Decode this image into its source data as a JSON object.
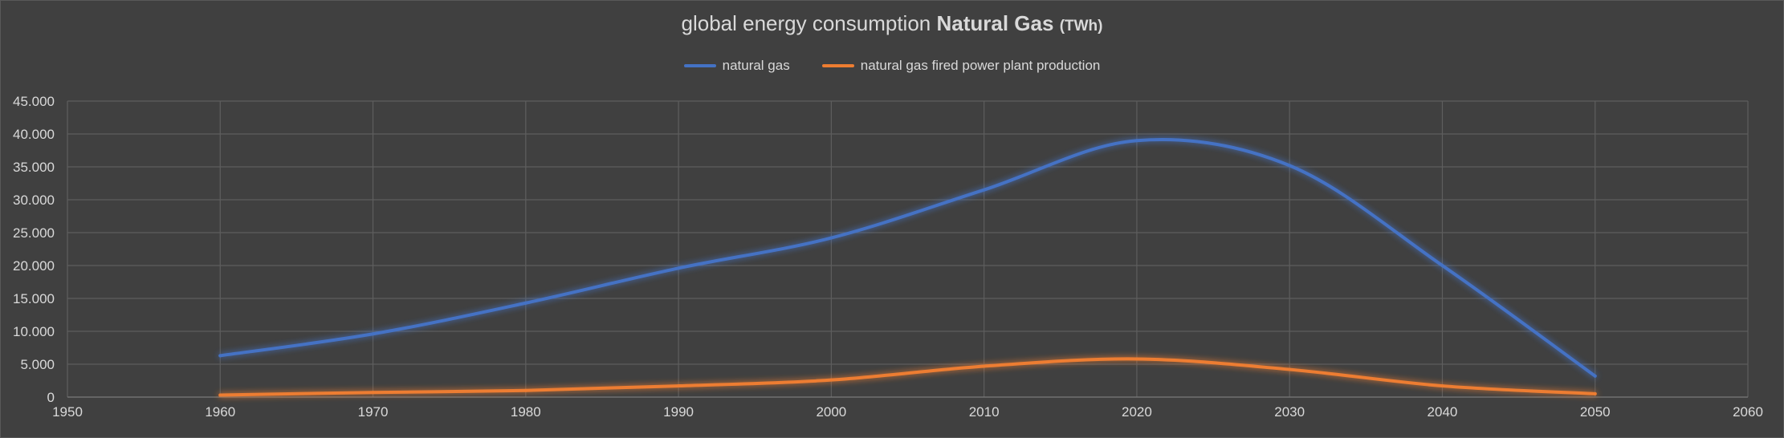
{
  "chart_data": {
    "type": "line",
    "title": "global energy consumption",
    "title_bold": "Natural Gas",
    "title_unit": "(TWh)",
    "xlabel": "",
    "ylabel": "",
    "xlim": [
      1950,
      2060
    ],
    "ylim": [
      0,
      45000
    ],
    "x_ticks": [
      "1950",
      "1960",
      "1970",
      "1980",
      "1990",
      "2000",
      "2010",
      "2020",
      "2030",
      "2040",
      "2050",
      "2060"
    ],
    "y_ticks": [
      "0",
      "5.000",
      "10.000",
      "15.000",
      "20.000",
      "25.000",
      "30.000",
      "35.000",
      "40.000",
      "45.000"
    ],
    "grid": true,
    "legend_position": "top-center",
    "series": [
      {
        "name": "natural gas",
        "color": "#4472c4",
        "x": [
          1960,
          1970,
          1980,
          1990,
          2000,
          2010,
          2020,
          2030,
          2040,
          2050
        ],
        "y": [
          6300,
          9600,
          14300,
          19600,
          24200,
          31500,
          39000,
          35200,
          20000,
          3200
        ]
      },
      {
        "name": "natural gas fired power plant production",
        "color": "#ed7d31",
        "x": [
          1960,
          1970,
          1980,
          1990,
          2000,
          2010,
          2020,
          2030,
          2040,
          2050
        ],
        "y": [
          300,
          700,
          1000,
          1700,
          2600,
          4700,
          5800,
          4200,
          1700,
          500
        ]
      }
    ]
  }
}
